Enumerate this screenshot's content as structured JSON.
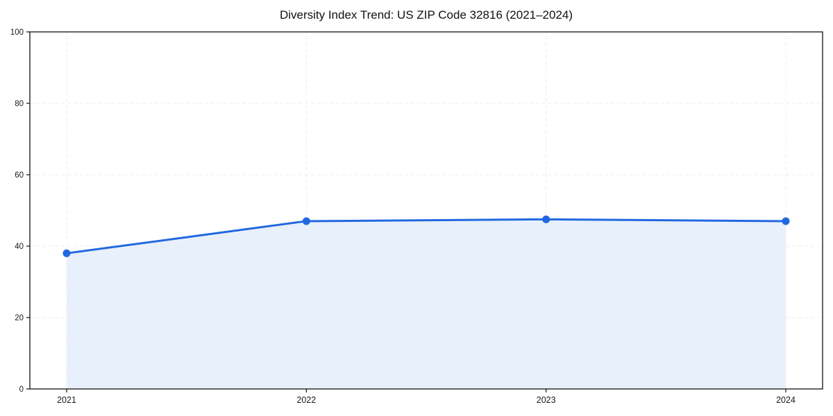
{
  "chart_data": {
    "type": "area",
    "title": "Diversity Index Trend: US ZIP Code 32816 (2021–2024)",
    "categories": [
      "2021",
      "2022",
      "2023",
      "2024"
    ],
    "series": [
      {
        "name": "Diversity Index",
        "values": [
          38,
          47,
          47.5,
          47
        ]
      }
    ],
    "xlabel": "",
    "ylabel": "",
    "ylim": [
      0,
      100
    ],
    "yticks": [
      0,
      20,
      40,
      60,
      80,
      100
    ],
    "grid": true,
    "grid_style": "dashed",
    "legend": "none",
    "line_color": "#2068e0",
    "marker": "circle",
    "fill_color": "rgba(32, 104, 224, 0.10)",
    "grid_color": "#ececec",
    "axis_color": "#111111",
    "tick_label_color": "#1a1a1a",
    "background": "#ffffff"
  }
}
